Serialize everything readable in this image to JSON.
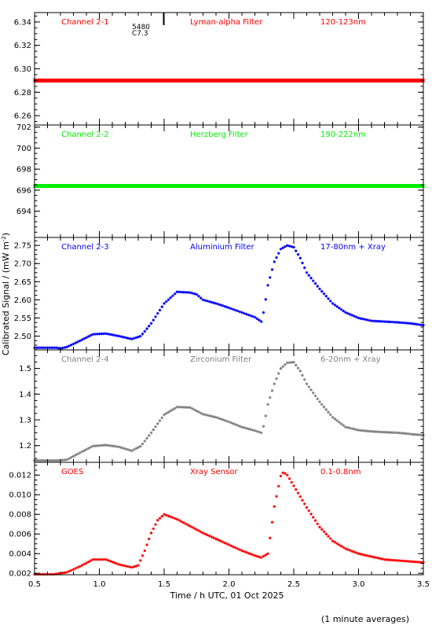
{
  "figure": {
    "xlabel": "Time / h UTC, 01 Oct 2025",
    "ylabel": "Calibrated Signal / (mW m",
    "ylabel_sup": "-2",
    "ylabel_close": ")",
    "footnote": "(1 minute averages)",
    "marker_text_1": "5480",
    "marker_text_2": "C7.3"
  },
  "chart_data": [
    {
      "type": "scatter",
      "labels": [
        "Channel 2-1",
        "Lyman-alpha Filter",
        "120-123nm"
      ],
      "color": "#ff0000",
      "xlim": [
        0.5,
        3.5
      ],
      "ylim": [
        6.252,
        6.348
      ],
      "yticks": [
        6.26,
        6.28,
        6.3,
        6.32,
        6.34
      ],
      "ytick_labels": [
        "6.26",
        "6.28",
        "6.30",
        "6.32",
        "6.34"
      ],
      "xticks": [
        0.5,
        1.0,
        1.5,
        2.0,
        2.5,
        3.0,
        3.5
      ],
      "profile": {
        "x": [
          0.5,
          3.5
        ],
        "y": [
          6.29,
          6.29
        ]
      }
    },
    {
      "type": "scatter",
      "labels": [
        "Channel 2-2",
        "Herzberg Filter",
        "190-222nm"
      ],
      "color": "#00ee00",
      "xlim": [
        0.5,
        3.5
      ],
      "ylim": [
        691.5,
        702.2
      ],
      "yticks": [
        694,
        696,
        698,
        700,
        702
      ],
      "ytick_labels": [
        "694",
        "696",
        "698",
        "700",
        "702"
      ],
      "xticks": [
        0.5,
        1.0,
        1.5,
        2.0,
        2.5,
        3.0,
        3.5
      ],
      "profile": {
        "x": [
          0.5,
          3.5
        ],
        "y": [
          696.4,
          696.4
        ]
      }
    },
    {
      "type": "scatter",
      "labels": [
        "Channel 2-3",
        "Aluminium Filter",
        "17-80nm + Xray"
      ],
      "color": "#0000ff",
      "xlim": [
        0.5,
        3.5
      ],
      "ylim": [
        2.462,
        2.772
      ],
      "yticks": [
        2.5,
        2.55,
        2.6,
        2.65,
        2.7,
        2.75
      ],
      "ytick_labels": [
        "2.50",
        "2.55",
        "2.60",
        "2.65",
        "2.70",
        "2.75"
      ],
      "xticks": [
        0.5,
        1.0,
        1.5,
        2.0,
        2.5,
        3.0,
        3.5
      ],
      "profile": {
        "x": [
          0.5,
          0.68,
          0.69,
          0.75,
          0.85,
          0.95,
          1.05,
          1.15,
          1.25,
          1.32,
          1.4,
          1.5,
          1.6,
          1.7,
          1.75,
          1.8,
          1.9,
          2.0,
          2.1,
          2.2,
          2.25,
          2.27,
          2.3,
          2.35,
          2.4,
          2.45,
          2.5,
          2.55,
          2.6,
          2.7,
          2.8,
          2.9,
          3.0,
          3.1,
          3.2,
          3.3,
          3.4,
          3.5
        ],
        "y": [
          2.468,
          2.468,
          2.465,
          2.47,
          2.487,
          2.505,
          2.507,
          2.5,
          2.492,
          2.5,
          2.535,
          2.59,
          2.622,
          2.62,
          2.615,
          2.6,
          2.59,
          2.578,
          2.565,
          2.552,
          2.54,
          2.57,
          2.64,
          2.705,
          2.74,
          2.75,
          2.745,
          2.715,
          2.675,
          2.63,
          2.59,
          2.565,
          2.55,
          2.542,
          2.54,
          2.538,
          2.535,
          2.53
        ]
      }
    },
    {
      "type": "scatter",
      "labels": [
        "Channel 2-4",
        "Zirconium Filter",
        "6-20nm + Xray"
      ],
      "color": "#808080",
      "xlim": [
        0.5,
        3.5
      ],
      "ylim": [
        1.135,
        1.572
      ],
      "yticks": [
        1.2,
        1.3,
        1.4,
        1.5
      ],
      "ytick_labels": [
        "1.2",
        "1.3",
        "1.4",
        "1.5"
      ],
      "xticks": [
        0.5,
        1.0,
        1.5,
        2.0,
        2.5,
        3.0,
        3.5
      ],
      "profile": {
        "x": [
          0.5,
          0.68,
          0.75,
          0.85,
          0.95,
          1.05,
          1.15,
          1.25,
          1.32,
          1.4,
          1.5,
          1.6,
          1.7,
          1.75,
          1.8,
          1.9,
          2.0,
          2.1,
          2.2,
          2.25,
          2.27,
          2.3,
          2.35,
          2.4,
          2.45,
          2.5,
          2.55,
          2.6,
          2.7,
          2.8,
          2.9,
          3.0,
          3.1,
          3.2,
          3.3,
          3.4,
          3.5
        ],
        "y": [
          1.142,
          1.142,
          1.145,
          1.172,
          1.198,
          1.202,
          1.195,
          1.18,
          1.198,
          1.25,
          1.32,
          1.35,
          1.348,
          1.335,
          1.322,
          1.31,
          1.292,
          1.272,
          1.258,
          1.25,
          1.28,
          1.36,
          1.44,
          1.5,
          1.522,
          1.524,
          1.49,
          1.44,
          1.37,
          1.31,
          1.272,
          1.26,
          1.255,
          1.252,
          1.25,
          1.245,
          1.24
        ]
      }
    },
    {
      "type": "scatter",
      "labels": [
        "GOES",
        "Xray Sensor",
        "0.1-0.8nm"
      ],
      "color": "#ff0000",
      "xlim": [
        0.5,
        3.5
      ],
      "ylim": [
        0.00185,
        0.0133
      ],
      "yticks": [
        0.002,
        0.004,
        0.006,
        0.008,
        0.01,
        0.012
      ],
      "ytick_labels": [
        "0.002",
        "0.004",
        "0.006",
        "0.008",
        "0.010",
        "0.012"
      ],
      "xticks": [
        0.5,
        1.0,
        1.5,
        2.0,
        2.5,
        3.0,
        3.5
      ],
      "xtick_labels": [
        "0.5",
        "1.0",
        "1.5",
        "2.0",
        "2.5",
        "3.0",
        "3.5"
      ],
      "profile": {
        "x": [
          0.5,
          0.65,
          0.75,
          0.85,
          0.95,
          1.05,
          1.15,
          1.25,
          1.3,
          1.35,
          1.4,
          1.45,
          1.5,
          1.6,
          1.7,
          1.8,
          1.9,
          2.0,
          2.1,
          2.2,
          2.25,
          2.3,
          2.35,
          2.4,
          2.42,
          2.45,
          2.5,
          2.6,
          2.7,
          2.8,
          2.9,
          3.0,
          3.1,
          3.2,
          3.3,
          3.4,
          3.5
        ],
        "y": [
          0.0019,
          0.0019,
          0.0021,
          0.0027,
          0.0034,
          0.0034,
          0.0029,
          0.0026,
          0.0028,
          0.0043,
          0.0061,
          0.0074,
          0.008,
          0.0075,
          0.0068,
          0.0061,
          0.0055,
          0.0049,
          0.0043,
          0.0038,
          0.0036,
          0.004,
          0.0088,
          0.0119,
          0.0123,
          0.012,
          0.0109,
          0.0087,
          0.0067,
          0.0053,
          0.0045,
          0.004,
          0.0037,
          0.0034,
          0.0033,
          0.0032,
          0.0031
        ]
      }
    }
  ]
}
